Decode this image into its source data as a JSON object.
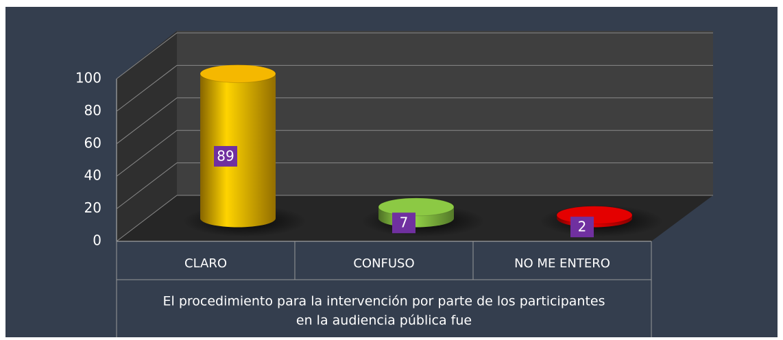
{
  "chart_data": {
    "type": "bar3d",
    "categories": [
      "CLARO",
      "CONFUSO",
      "NO ME ENTERO"
    ],
    "values": [
      89,
      7,
      2
    ],
    "colors": [
      "#f5b800",
      "#8cc944",
      "#e40000"
    ],
    "xlabel": [
      "El procedimiento para la intervención por parte de los participantes",
      "en la audiencia pública fue"
    ],
    "ylim": [
      0,
      100
    ],
    "yticks": [
      0,
      20,
      40,
      60,
      80,
      100
    ],
    "grid": true
  }
}
